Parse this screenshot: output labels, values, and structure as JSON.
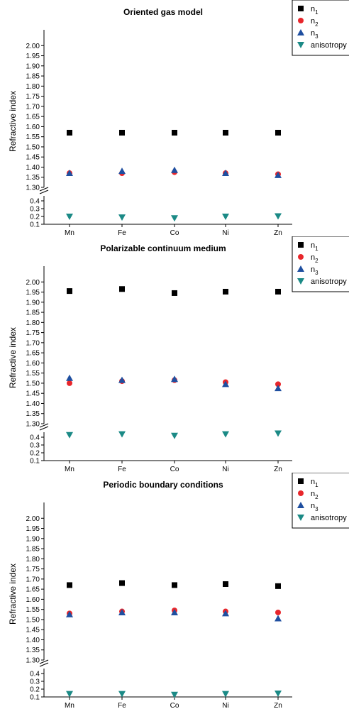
{
  "chart_data": [
    {
      "type": "scatter",
      "title": "Oriented gas model",
      "ylabel": "Refractive index",
      "xlabel": "",
      "categories": [
        "Mn",
        "Fe",
        "Co",
        "Ni",
        "Zn"
      ],
      "y_axis_break": true,
      "ylim_upper": [
        1.3,
        2.05
      ],
      "ylim_lower": [
        0.1,
        0.5
      ],
      "yticks_upper": [
        "1.30",
        "1.35",
        "1.40",
        "1.45",
        "1.50",
        "1.55",
        "1.60",
        "1.65",
        "1.70",
        "1.75",
        "1.80",
        "1.85",
        "1.90",
        "1.95",
        "2.00"
      ],
      "yticks_lower": [
        "0.1",
        "0.2",
        "0.3",
        "0.4"
      ],
      "legend_position": "top-right",
      "series": [
        {
          "name": "n1",
          "marker": "square",
          "color": "#000000",
          "values": [
            1.57,
            1.57,
            1.57,
            1.57,
            1.57
          ]
        },
        {
          "name": "n2",
          "marker": "circle",
          "color": "#e8262b",
          "values": [
            1.37,
            1.37,
            1.375,
            1.37,
            1.365
          ]
        },
        {
          "name": "n3",
          "marker": "triangle-up",
          "color": "#1f4fa0",
          "values": [
            1.37,
            1.38,
            1.385,
            1.37,
            1.36
          ]
        },
        {
          "name": "anisotropy",
          "marker": "triangle-down",
          "color": "#1b8a86",
          "values": [
            0.2,
            0.19,
            0.18,
            0.2,
            0.205
          ]
        }
      ]
    },
    {
      "type": "scatter",
      "title": "Polarizable continuum medium",
      "ylabel": "Refractive index",
      "xlabel": "",
      "categories": [
        "Mn",
        "Fe",
        "Co",
        "Ni",
        "Zn"
      ],
      "y_axis_break": true,
      "ylim_upper": [
        1.3,
        2.05
      ],
      "ylim_lower": [
        0.1,
        0.5
      ],
      "yticks_upper": [
        "1.30",
        "1.35",
        "1.40",
        "1.45",
        "1.50",
        "1.55",
        "1.60",
        "1.65",
        "1.70",
        "1.75",
        "1.80",
        "1.85",
        "1.90",
        "1.95",
        "2.00"
      ],
      "yticks_lower": [
        "0.1",
        "0.2",
        "0.3",
        "0.4"
      ],
      "legend_position": "top-right",
      "series": [
        {
          "name": "n1",
          "marker": "square",
          "color": "#000000",
          "values": [
            1.955,
            1.965,
            1.945,
            1.952,
            1.952
          ]
        },
        {
          "name": "n2",
          "marker": "circle",
          "color": "#e8262b",
          "values": [
            1.5,
            1.51,
            1.515,
            1.505,
            1.495
          ]
        },
        {
          "name": "n3",
          "marker": "triangle-up",
          "color": "#1f4fa0",
          "values": [
            1.525,
            1.515,
            1.52,
            1.495,
            1.475
          ]
        },
        {
          "name": "anisotropy",
          "marker": "triangle-down",
          "color": "#1b8a86",
          "values": [
            0.43,
            0.44,
            0.42,
            0.44,
            0.45
          ]
        }
      ]
    },
    {
      "type": "scatter",
      "title": "Periodic boundary conditions",
      "ylabel": "Refractive index",
      "xlabel": "",
      "categories": [
        "Mn",
        "Fe",
        "Co",
        "Ni",
        "Zn"
      ],
      "y_axis_break": true,
      "ylim_upper": [
        1.3,
        2.05
      ],
      "ylim_lower": [
        0.1,
        0.5
      ],
      "yticks_upper": [
        "1.30",
        "1.35",
        "1.40",
        "1.45",
        "1.50",
        "1.55",
        "1.60",
        "1.65",
        "1.70",
        "1.75",
        "1.80",
        "1.85",
        "1.90",
        "1.95",
        "2.00"
      ],
      "yticks_lower": [
        "0.1",
        "0.2",
        "0.3",
        "0.4"
      ],
      "legend_position": "top-right",
      "series": [
        {
          "name": "n1",
          "marker": "square",
          "color": "#000000",
          "values": [
            1.67,
            1.68,
            1.67,
            1.675,
            1.665
          ]
        },
        {
          "name": "n2",
          "marker": "circle",
          "color": "#e8262b",
          "values": [
            1.53,
            1.54,
            1.545,
            1.54,
            1.535
          ]
        },
        {
          "name": "n3",
          "marker": "triangle-up",
          "color": "#1f4fa0",
          "values": [
            1.525,
            1.535,
            1.535,
            1.53,
            1.505
          ]
        },
        {
          "name": "anisotropy",
          "marker": "triangle-down",
          "color": "#1b8a86",
          "values": [
            0.14,
            0.14,
            0.13,
            0.14,
            0.145
          ]
        }
      ]
    }
  ]
}
